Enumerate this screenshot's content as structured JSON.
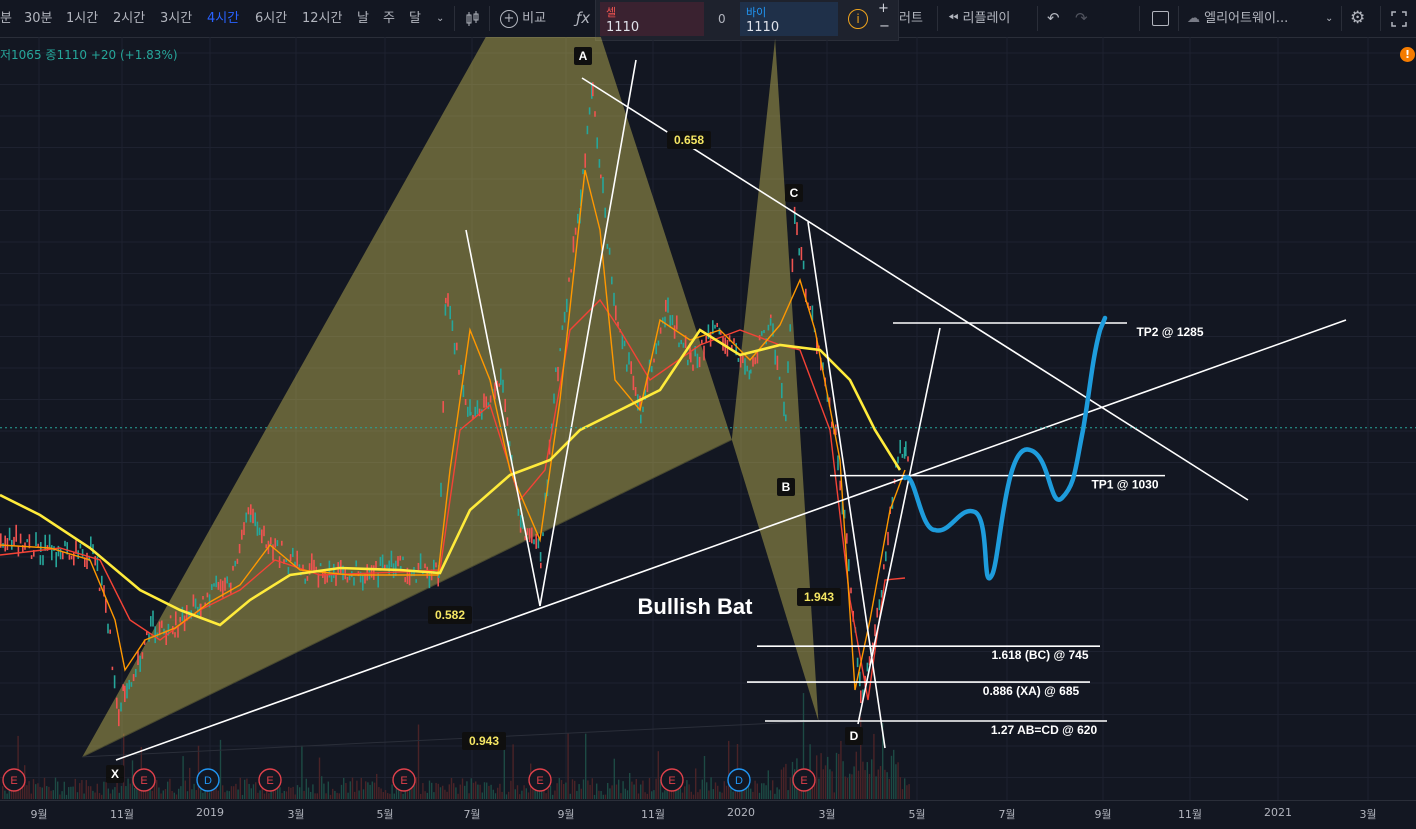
{
  "toolbar": {
    "intervals": [
      "분",
      "30분",
      "1시간",
      "2시간",
      "3시간",
      "4시간",
      "6시간",
      "12시간",
      "날",
      "주",
      "달"
    ],
    "active_interval": "4시간",
    "compare_label": "비교",
    "indicator_label": "러트",
    "replay_label": "리플레이",
    "layout_name": "엘리어트웨이...",
    "sell_label": "셀",
    "sell_price": "1110",
    "spread": "0",
    "buy_label": "바이",
    "buy_price": "1110"
  },
  "legend": {
    "low": "저1065",
    "close": "종1110",
    "change": "+20 (+1.83%)"
  },
  "chart_data": {
    "type": "line",
    "title": "Bullish Bat",
    "xlabel": "",
    "ylabel": "",
    "x_ticks": [
      "9월",
      "11월",
      "2019",
      "3월",
      "5월",
      "7월",
      "9월",
      "11월",
      "2020",
      "3월",
      "5월",
      "7월",
      "9월",
      "11월",
      "2021",
      "3월"
    ],
    "pattern_points": [
      {
        "label": "X",
        "date": "2018-10",
        "price": 560
      },
      {
        "label": "A",
        "date": "2019-09",
        "price": 1980
      },
      {
        "label": "B",
        "date": "2020-01",
        "price": 1090
      },
      {
        "label": "C",
        "date": "2020-02",
        "price": 1760
      },
      {
        "label": "D",
        "date": "2020-03",
        "price": 620
      }
    ],
    "ratios": [
      "0.658",
      "0.582",
      "1.943",
      "0.943"
    ],
    "targets": [
      {
        "label": "TP2 @ 1285",
        "price": 1285
      },
      {
        "label": "TP1 @ 1030",
        "price": 1030
      },
      {
        "label": "1.618 (BC) @ 745",
        "price": 745
      },
      {
        "label": "0.886 (XA) @ 685",
        "price": 685
      },
      {
        "label": "1.27 AB=CD @ 620",
        "price": 620
      }
    ],
    "last_price": 1110,
    "events": [
      "E",
      "E",
      "D",
      "E",
      "E",
      "E",
      "E",
      "D",
      "E"
    ]
  },
  "colors": {
    "background": "#131722",
    "pattern_fill": "#d4c75a",
    "ma_yellow": "#ffeb3b",
    "projection": "#1e9cdc",
    "up": "#26a69a",
    "down": "#ef5350"
  }
}
